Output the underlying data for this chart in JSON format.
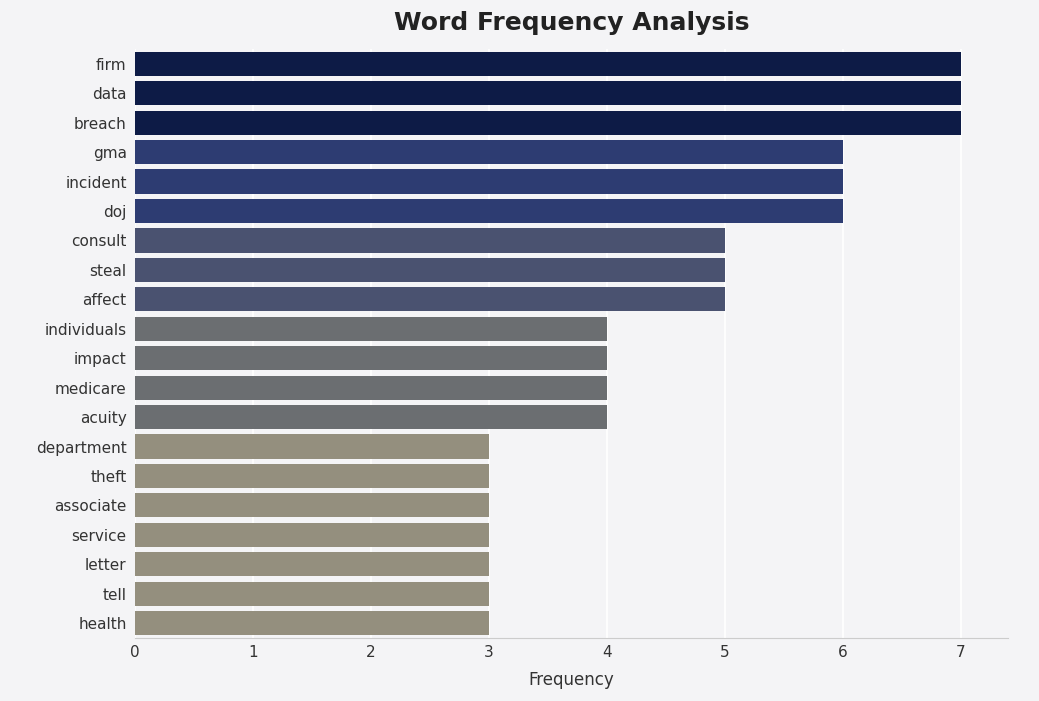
{
  "categories": [
    "health",
    "tell",
    "letter",
    "service",
    "associate",
    "theft",
    "department",
    "acuity",
    "medicare",
    "impact",
    "individuals",
    "affect",
    "steal",
    "consult",
    "doj",
    "incident",
    "gma",
    "breach",
    "data",
    "firm"
  ],
  "values": [
    3,
    3,
    3,
    3,
    3,
    3,
    3,
    4,
    4,
    4,
    4,
    5,
    5,
    5,
    6,
    6,
    6,
    7,
    7,
    7
  ],
  "bar_colors": [
    "#948f7e",
    "#948f7e",
    "#948f7e",
    "#948f7e",
    "#948f7e",
    "#948f7e",
    "#948f7e",
    "#6b6e71",
    "#6b6e71",
    "#6b6e71",
    "#6b6e71",
    "#4a5270",
    "#4a5270",
    "#4a5270",
    "#2d3c72",
    "#2d3c72",
    "#2d3c72",
    "#0d1b46",
    "#0d1b46",
    "#0d1b46"
  ],
  "title": "Word Frequency Analysis",
  "xlabel": "Frequency",
  "xlim": [
    0,
    7.4
  ],
  "xticks": [
    0,
    1,
    2,
    3,
    4,
    5,
    6,
    7
  ],
  "plot_bg_color": "#f4f4f6",
  "fig_bg_color": "#f4f4f6",
  "title_fontsize": 18,
  "bar_height": 0.82,
  "label_fontsize": 11,
  "xlabel_fontsize": 12
}
